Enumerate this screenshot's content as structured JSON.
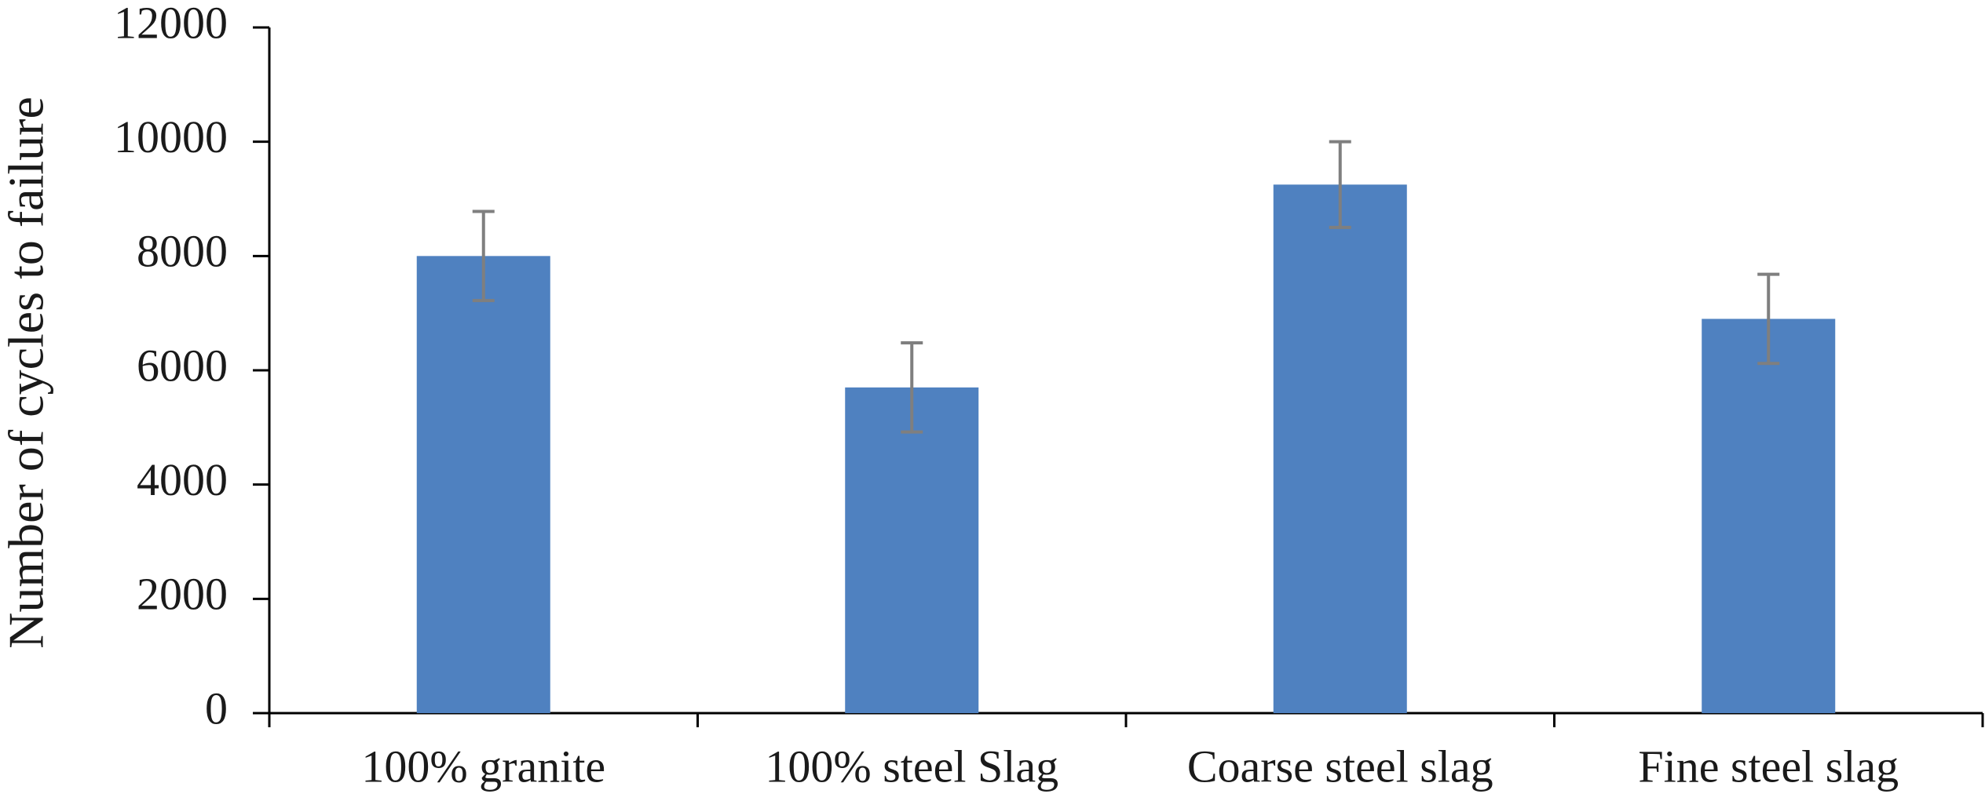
{
  "chart_data": {
    "type": "bar",
    "y_label": "Number of cycles to failure",
    "categories": [
      "100% granite",
      "100% steel Slag",
      "Coarse steel slag",
      "Fine steel slag"
    ],
    "values": [
      8000,
      5700,
      9250,
      6900
    ],
    "errors": [
      780,
      780,
      750,
      780
    ],
    "color": "#4f81c0",
    "error_color": "#7f7f7f",
    "ylim": [
      0,
      12000
    ],
    "yticks": [
      0,
      2000,
      4000,
      6000,
      8000,
      10000,
      12000
    ],
    "grid": false
  }
}
